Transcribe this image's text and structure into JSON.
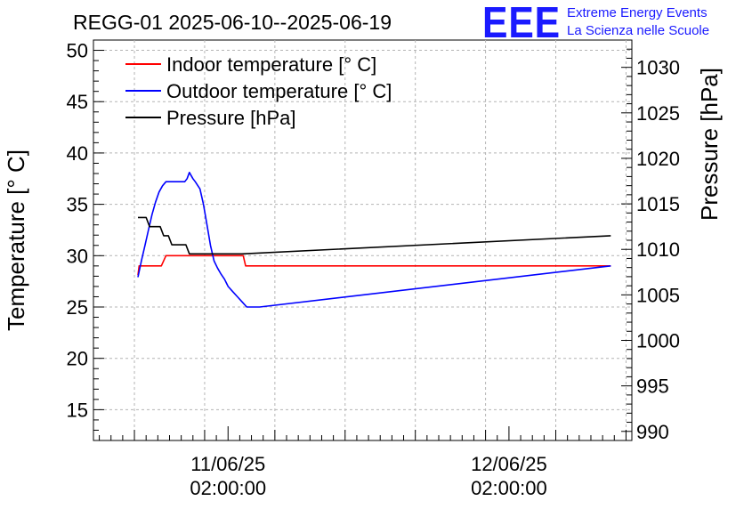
{
  "chart_data": {
    "type": "line",
    "title": "REGG-01 2025-06-10--2025-06-19",
    "logo": {
      "text": "EEE",
      "line1": "Extreme Energy Events",
      "line2": "La Scienza nelle Scuole",
      "color": "#1a1aff"
    },
    "x_time_hours": {
      "note": "hours since 2025-06-10 00:00",
      "range": [
        14.5,
        60.5
      ]
    },
    "x_tick_labels": [
      {
        "t": 26,
        "date": "11/06/25",
        "time": "02:00:00"
      },
      {
        "t": 50,
        "date": "12/06/25",
        "time": "02:00:00"
      }
    ],
    "y_left": {
      "label": "Temperature [° C]",
      "range": [
        12,
        51
      ],
      "ticks": [
        15,
        20,
        25,
        30,
        35,
        40,
        45,
        50
      ]
    },
    "y_right": {
      "label": "Pressure [hPa]",
      "range": [
        989,
        1033
      ],
      "ticks": [
        990,
        995,
        1000,
        1005,
        1010,
        1015,
        1020,
        1025,
        1030
      ]
    },
    "legend": [
      {
        "label": "Indoor temperature [° C]",
        "color": "#ff0000"
      },
      {
        "label": "Outdoor temperature [° C]",
        "color": "#0000ff"
      },
      {
        "label": "Pressure [hPa]",
        "color": "#000000"
      }
    ],
    "series": [
      {
        "name": "Indoor temperature [° C]",
        "axis": "left",
        "color": "#ff0000",
        "points": [
          [
            18.3,
            28.1
          ],
          [
            18.4,
            29.0
          ],
          [
            20.3,
            29.0
          ],
          [
            20.5,
            29.5
          ],
          [
            20.7,
            30.0
          ],
          [
            21.3,
            30.0
          ],
          [
            21.5,
            30.0
          ],
          [
            22.2,
            30.0
          ],
          [
            22.4,
            30.0
          ],
          [
            27.3,
            30.0
          ],
          [
            27.5,
            29.0
          ],
          [
            58.7,
            29.0
          ]
        ]
      },
      {
        "name": "Outdoor temperature [° C]",
        "axis": "left",
        "color": "#0000ff",
        "points": [
          [
            18.3,
            27.9
          ],
          [
            18.6,
            29.5
          ],
          [
            18.9,
            31.0
          ],
          [
            19.2,
            32.5
          ],
          [
            19.5,
            34.0
          ],
          [
            19.8,
            35.2
          ],
          [
            20.1,
            36.2
          ],
          [
            20.4,
            36.8
          ],
          [
            20.7,
            37.2
          ],
          [
            21.2,
            37.2
          ],
          [
            21.7,
            37.2
          ],
          [
            22.3,
            37.2
          ],
          [
            22.5,
            37.5
          ],
          [
            22.7,
            38.1
          ],
          [
            23.0,
            37.5
          ],
          [
            23.2,
            37.2
          ],
          [
            23.6,
            36.5
          ],
          [
            23.9,
            35.0
          ],
          [
            24.2,
            33.0
          ],
          [
            24.5,
            31.0
          ],
          [
            24.8,
            29.5
          ],
          [
            25.1,
            28.8
          ],
          [
            25.4,
            28.2
          ],
          [
            25.7,
            27.7
          ],
          [
            26.0,
            27.0
          ],
          [
            26.4,
            26.5
          ],
          [
            26.8,
            26.0
          ],
          [
            27.2,
            25.5
          ],
          [
            27.6,
            25.0
          ],
          [
            28.0,
            25.0
          ],
          [
            28.7,
            25.0
          ],
          [
            58.7,
            29.0
          ]
        ]
      },
      {
        "name": "Pressure [hPa]",
        "axis": "right",
        "color": "#000000",
        "points": [
          [
            18.3,
            1013.5
          ],
          [
            19.0,
            1013.5
          ],
          [
            19.3,
            1012.5
          ],
          [
            20.2,
            1012.5
          ],
          [
            20.5,
            1011.5
          ],
          [
            20.9,
            1011.5
          ],
          [
            21.2,
            1010.5
          ],
          [
            22.4,
            1010.5
          ],
          [
            22.7,
            1009.5
          ],
          [
            27.2,
            1009.5
          ],
          [
            58.7,
            1011.5
          ]
        ]
      }
    ]
  }
}
